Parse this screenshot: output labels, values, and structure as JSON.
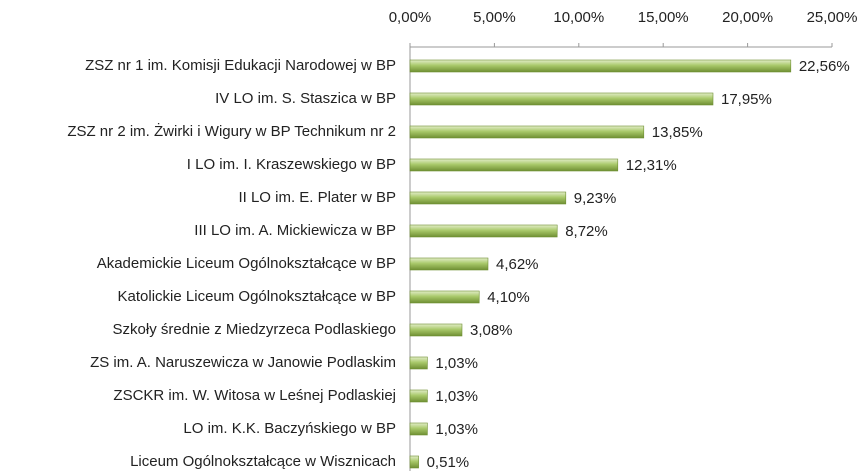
{
  "chart_data": {
    "type": "barh",
    "categories": [
      "ZSZ nr 1 im. Komisji Edukacji Narodowej w BP",
      "IV LO im. S. Staszica w BP",
      "ZSZ nr 2 im. Żwirki i Wigury w BP Technikum nr 2",
      "I LO im. I. Kraszewskiego w BP",
      "II LO im. E. Plater w BP",
      "III LO im. A. Mickiewicza w BP",
      "Akademickie Liceum Ogólnokształcące w BP",
      "Katolickie Liceum Ogólnokształcące w BP",
      "Szkoły średnie z Miedzyrzeca Podlaskiego",
      "ZS im. A. Naruszewicza w Janowie Podlaskim",
      "ZSCKR im. W. Witosa w Leśnej Podlaskiej",
      "LO im. K.K. Baczyńskiego w BP",
      "Liceum Ogólnokształcące w Wisznicach"
    ],
    "values": [
      22.56,
      17.95,
      13.85,
      12.31,
      9.23,
      8.72,
      4.62,
      4.1,
      3.08,
      1.03,
      1.03,
      1.03,
      0.51
    ],
    "value_labels": [
      "22,56%",
      "17,95%",
      "13,85%",
      "12,31%",
      "9,23%",
      "8,72%",
      "4,62%",
      "4,10%",
      "3,08%",
      "1,03%",
      "1,03%",
      "1,03%",
      "0,51%"
    ],
    "color": "#9bbb59",
    "xlim": [
      0,
      25
    ],
    "xticks": [
      {
        "value": 0,
        "label": "0,00%"
      },
      {
        "value": 5,
        "label": "5,00%"
      },
      {
        "value": 10,
        "label": "10,00%"
      },
      {
        "value": 15,
        "label": "15,00%"
      },
      {
        "value": 20,
        "label": "20,00%"
      },
      {
        "value": 25,
        "label": "25,00%"
      }
    ]
  }
}
